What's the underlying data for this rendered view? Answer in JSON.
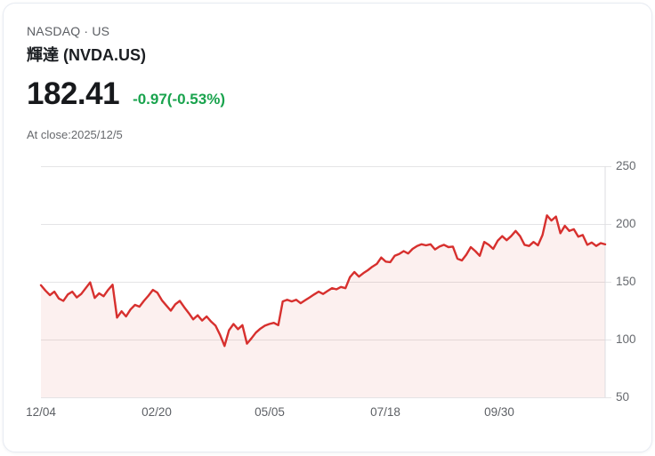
{
  "header": {
    "exchange_line": "NASDAQ · US",
    "title": "輝達 (NVDA.US)"
  },
  "quote": {
    "price": "182.41",
    "change": "-0.97(-0.53%)",
    "change_color": "#19a34d",
    "at_close": "At close:2025/12/5"
  },
  "chart_data": {
    "type": "area",
    "title": "NVDA.US 1-year price",
    "xlabel": "",
    "ylabel": "",
    "ylim": [
      50,
      250
    ],
    "grid": true,
    "line_color": "#d7302e",
    "fill_color": "rgba(215,48,46,0.075)",
    "gridline_color": "#e4e4e6",
    "axis_line_color": "#dcdde1",
    "y_ticks": [
      250,
      200,
      150,
      100,
      50
    ],
    "x_tick_labels": [
      "12/04",
      "02/20",
      "05/05",
      "07/18",
      "09/30"
    ],
    "x_tick_offsets": [
      0,
      130,
      257,
      387,
      515
    ],
    "values": [
      147,
      142.5,
      138.5,
      141.5,
      135.5,
      133.5,
      139,
      141.5,
      136.5,
      139.5,
      144.5,
      149.5,
      136,
      140,
      137.5,
      143,
      147.5,
      119,
      124.5,
      120,
      126,
      130,
      128.5,
      133.5,
      138,
      143,
      140.5,
      134,
      129.5,
      125,
      130.5,
      133.5,
      128,
      123,
      117.5,
      121,
      116.5,
      120,
      115.5,
      112,
      104,
      94.5,
      108,
      113.5,
      109,
      112.5,
      96.5,
      101,
      106,
      109.5,
      112,
      113.5,
      114.5,
      112.5,
      133,
      134.5,
      133,
      134.5,
      131.5,
      134,
      136.5,
      139,
      141.5,
      139.5,
      142,
      144.5,
      143.5,
      145.5,
      144.5,
      154,
      158.5,
      154.5,
      157.5,
      160,
      163,
      165.5,
      171,
      167.5,
      167,
      172.5,
      174,
      176.5,
      174.5,
      178.5,
      181,
      182.5,
      181.5,
      182.5,
      178,
      180.5,
      182,
      180,
      180.5,
      170,
      168.5,
      173.5,
      180,
      176.5,
      172.5,
      184.5,
      182,
      178.5,
      185.5,
      189.5,
      186,
      189.5,
      194,
      189.5,
      182,
      181,
      184.5,
      181.5,
      190.5,
      207.5,
      203,
      206.5,
      192,
      198.5,
      194,
      195.5,
      189,
      190.5,
      182,
      184,
      181,
      183.5,
      182.41
    ]
  }
}
